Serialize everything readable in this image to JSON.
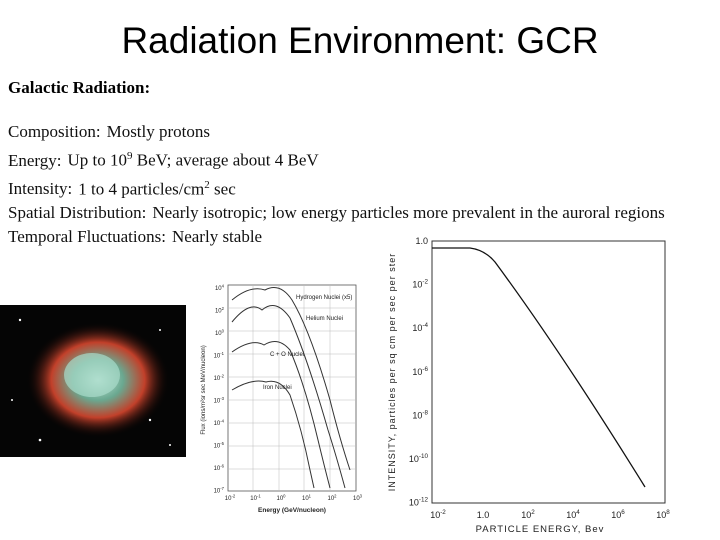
{
  "title": "Radiation Environment: GCR",
  "heading": "Galactic Radiation:",
  "items": [
    {
      "label": "Composition:",
      "text": "Mostly protons"
    },
    {
      "label": "Energy:",
      "text": "Up to 10",
      "sup": "9",
      "rest": " BeV; average about 4 BeV"
    },
    {
      "label": "Intensity:",
      "text": "1 to 4 particles/cm",
      "sup": "2",
      "rest": " sec"
    },
    {
      "label": "Spatial Distribution:",
      "text": "Nearly isotropic; low energy particles more prevalent in the auroral regions"
    },
    {
      "label": "Temporal Fluctuations:",
      "text": "Nearly stable"
    }
  ],
  "left_figure": {
    "y_label": "Flux (ions/m²sr sec MeV/nucleon)",
    "x_label": "Energy (GeV/nucleon)",
    "curve_labels": [
      "Hydrogen Nuclei (x5)",
      "Helium Nuclei",
      "C + O Nuclei",
      "Iron Nuclei"
    ],
    "y_ticks": [
      {
        "base": "10",
        "exp": "4"
      },
      {
        "base": "10",
        "exp": "2"
      },
      {
        "base": "10",
        "exp": "0"
      },
      {
        "base": "10",
        "exp": "-1"
      },
      {
        "base": "10",
        "exp": "-2"
      },
      {
        "base": "10",
        "exp": "-3"
      },
      {
        "base": "10",
        "exp": "-4"
      },
      {
        "base": "10",
        "exp": "-5"
      },
      {
        "base": "10",
        "exp": "-6"
      },
      {
        "base": "10",
        "exp": "-7"
      }
    ],
    "x_ticks": [
      {
        "base": "10",
        "exp": "-2"
      },
      {
        "base": "10",
        "exp": "-1"
      },
      {
        "base": "10",
        "exp": "0"
      },
      {
        "base": "10",
        "exp": "1"
      },
      {
        "base": "10",
        "exp": "2"
      },
      {
        "base": "10",
        "exp": "3"
      }
    ]
  },
  "right_figure": {
    "y_label": "INTENSITY, particles per sq cm per sec per ster",
    "x_label": "PARTICLE ENERGY, Bev",
    "y_ticks": [
      {
        "base": "1.0"
      },
      {
        "base": "10",
        "exp": "-2"
      },
      {
        "base": "10",
        "exp": "-4"
      },
      {
        "base": "10",
        "exp": "-6"
      },
      {
        "base": "10",
        "exp": "-8"
      },
      {
        "base": "10",
        "exp": "-10"
      },
      {
        "base": "10",
        "exp": "-12"
      }
    ],
    "x_ticks": [
      {
        "base": "10",
        "exp": "-2"
      },
      {
        "base": "1.0"
      },
      {
        "base": "10",
        "exp": "2"
      },
      {
        "base": "10",
        "exp": "4"
      },
      {
        "base": "10",
        "exp": "6"
      },
      {
        "base": "10",
        "exp": "8"
      }
    ]
  }
}
